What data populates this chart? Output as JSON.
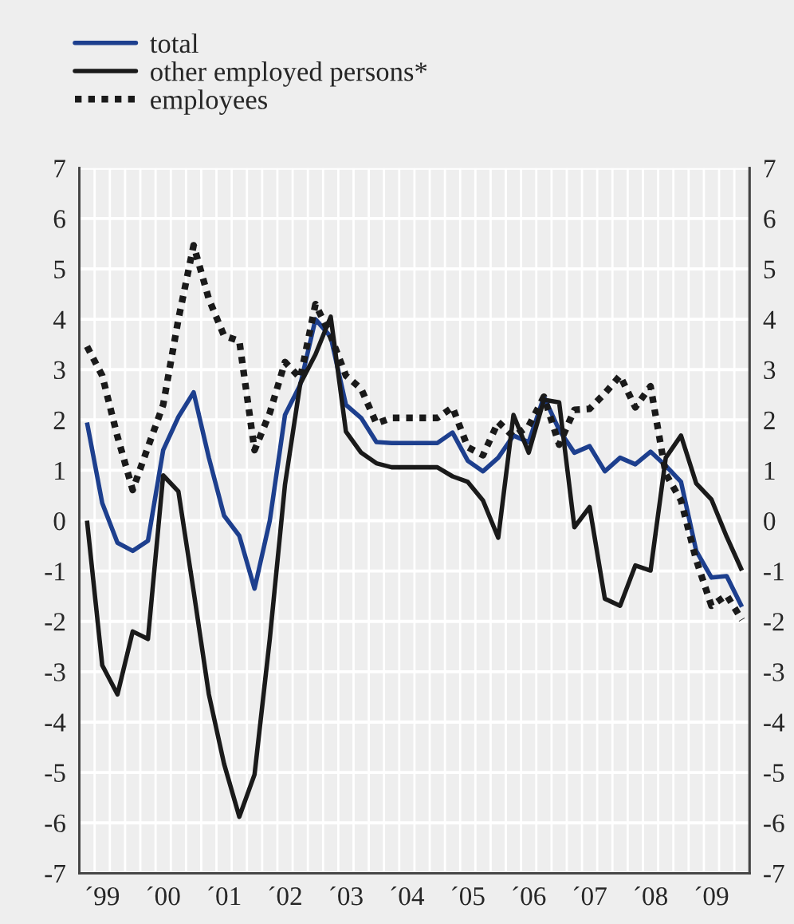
{
  "chart_data": {
    "type": "line",
    "categories": [
      null,
      "´99",
      null,
      null,
      null,
      "´00",
      null,
      null,
      null,
      "´01",
      null,
      null,
      null,
      "´02",
      null,
      null,
      null,
      "´03",
      null,
      null,
      null,
      "´04",
      null,
      null,
      null,
      "´05",
      null,
      null,
      null,
      "´06",
      null,
      null,
      null,
      "´07",
      null,
      null,
      null,
      "´08",
      null,
      null,
      null,
      "´09",
      null,
      null
    ],
    "series": [
      {
        "name": "total",
        "color": "#1d3f8e",
        "line_style": "solid",
        "values": [
          1.95,
          0.35,
          -0.44,
          -0.6,
          -0.4,
          1.4,
          2.06,
          2.55,
          1.25,
          0.1,
          -0.3,
          -1.35,
          0,
          2.1,
          2.7,
          4.0,
          3.65,
          2.3,
          2.04,
          1.56,
          1.54,
          1.54,
          1.54,
          1.54,
          1.75,
          1.19,
          0.98,
          1.25,
          1.69,
          1.56,
          2.46,
          1.8,
          1.35,
          1.48,
          0.98,
          1.25,
          1.12,
          1.37,
          1.09,
          0.77,
          -0.6,
          -1.13,
          -1.1,
          -1.71
        ]
      },
      {
        "name": "other employed persons*",
        "color": "#1a1a1a",
        "line_style": "solid",
        "values": [
          0,
          -2.87,
          -3.45,
          -2.2,
          -2.35,
          0.9,
          0.58,
          -1.4,
          -3.45,
          -4.83,
          -5.88,
          -5.04,
          -2.35,
          0.72,
          2.72,
          3.3,
          4.05,
          1.77,
          1.35,
          1.14,
          1.06,
          1.06,
          1.06,
          1.06,
          0.88,
          0.77,
          0.4,
          -0.34,
          2.1,
          1.35,
          2.4,
          2.35,
          -0.13,
          0.27,
          -1.55,
          -1.69,
          -0.89,
          -0.99,
          1.25,
          1.69,
          0.74,
          0.42,
          -0.32,
          -0.99
        ]
      },
      {
        "name": "employees",
        "color": "#1a1a1a",
        "line_style": "dotted",
        "values": [
          3.46,
          2.88,
          1.67,
          0.61,
          1.46,
          2.3,
          4.0,
          5.47,
          4.4,
          3.67,
          3.57,
          1.4,
          2.14,
          3.15,
          2.83,
          4.3,
          3.67,
          2.88,
          2.62,
          1.93,
          2.04,
          2.04,
          2.04,
          2.04,
          2.25,
          1.46,
          1.3,
          1.96,
          1.67,
          1.88,
          2.46,
          1.51,
          2.2,
          2.22,
          2.53,
          2.88,
          2.25,
          2.67,
          0.93,
          0.4,
          -0.78,
          -1.69,
          -1.48,
          -1.97
        ]
      }
    ],
    "ylim": [
      -7,
      7
    ],
    "yticks": [
      -7,
      -6,
      -5,
      -4,
      -3,
      -2,
      -1,
      0,
      1,
      2,
      3,
      4,
      5,
      6,
      7
    ],
    "y2lim": [
      -7,
      7
    ],
    "y2ticks": [
      -7,
      -6,
      -5,
      -4,
      -3,
      -2,
      -1,
      0,
      1,
      2,
      3,
      4,
      5,
      6,
      7
    ],
    "grid": true,
    "legend": "top left"
  }
}
